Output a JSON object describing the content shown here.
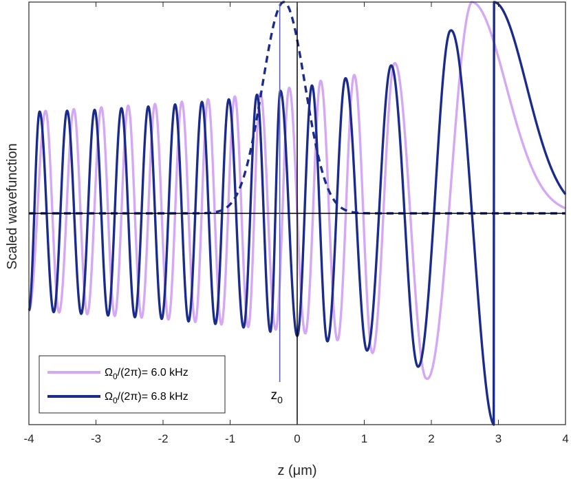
{
  "chart_data": {
    "type": "line",
    "xlabel": "z (μm)",
    "ylabel": "Scaled wavefunction",
    "xlim": [
      -4,
      4
    ],
    "ylim": [
      -1.0,
      1.0
    ],
    "xticks": [
      -4,
      -3,
      -2,
      -1,
      0,
      1,
      2,
      3,
      4
    ],
    "xtick_labels": [
      "-4",
      "-3",
      "-2",
      "-1",
      "0",
      "1",
      "2",
      "3",
      "4"
    ],
    "grid": false,
    "legend_position": "bottom-left",
    "annotation": {
      "label": "z",
      "subscript": "0",
      "x": -0.26
    },
    "reference_lines": {
      "x_zero": 0,
      "y_zero": 0
    },
    "series": [
      {
        "name": "Ω",
        "name_sub": "0",
        "name_rest": "/(2π)= 6.0 kHz",
        "color": "#d4a8f5",
        "style": "solid",
        "x": [
          -4.0,
          -3.5,
          -3.0,
          -2.5,
          -2.0,
          -1.5,
          -1.0,
          -0.5,
          0.0,
          0.5,
          1.0,
          1.5,
          2.0,
          2.5,
          2.6,
          3.0,
          3.5,
          4.0
        ],
        "y": [
          -0.46,
          0.0,
          0.0,
          0.0,
          0.0,
          0.0,
          0.0,
          0.0,
          0.0,
          0.0,
          0.0,
          0.0,
          0.0,
          0.0,
          1.0,
          0.6,
          0.2,
          0.01
        ],
        "envelope": {
          "amp_pos": [
            [
              -4,
              0.48
            ],
            [
              -3,
              0.495
            ],
            [
              -2,
              0.52
            ],
            [
              -1,
              0.55
            ],
            [
              0,
              0.6
            ],
            [
              1,
              0.66
            ],
            [
              1.5,
              0.71
            ],
            [
              1.9,
              0.75
            ],
            [
              2.6,
              1.0
            ]
          ],
          "amp_neg": [
            [
              -4,
              0.46
            ],
            [
              -3,
              0.47
            ],
            [
              -2,
              0.5
            ],
            [
              -1,
              0.53
            ],
            [
              0,
              0.56
            ],
            [
              1,
              0.62
            ],
            [
              1.5,
              0.69
            ],
            [
              1.92,
              0.78
            ]
          ],
          "peak_x": [
            -3.75,
            2.6
          ],
          "min_x": [
            1.92
          ]
        }
      },
      {
        "name": "Ω",
        "name_sub": "0",
        "name_rest": "/(2π)= 6.8 kHz",
        "color": "#1a2b8c",
        "style": "solid",
        "x": [
          -4.0,
          -3.84,
          -3.0,
          -2.0,
          -1.0,
          -0.25,
          0.0,
          1.0,
          1.8,
          2.28,
          2.93,
          3.5,
          4.0
        ],
        "y": [
          -0.46,
          0.48,
          0.49,
          0.51,
          0.55,
          0.58,
          -0.58,
          0.65,
          0.72,
          -0.78,
          1.0,
          0.4,
          0.02
        ],
        "envelope": {
          "peak_x": [
            -3.84,
            2.93
          ],
          "min_x": [
            2.28
          ]
        }
      },
      {
        "name": "",
        "color": "#1a2b8c",
        "style": "dashed",
        "x": [
          -4.0,
          -2.0,
          -1.5,
          -1.0,
          -0.7,
          -0.5,
          -0.3,
          -0.1,
          0.1,
          0.3,
          0.5,
          0.8,
          1.5,
          4.0
        ],
        "y": [
          0.0,
          0.0,
          0.0,
          0.06,
          0.37,
          0.73,
          0.98,
          0.98,
          0.72,
          0.37,
          0.06,
          0.0,
          0.0,
          0.0
        ]
      }
    ]
  }
}
